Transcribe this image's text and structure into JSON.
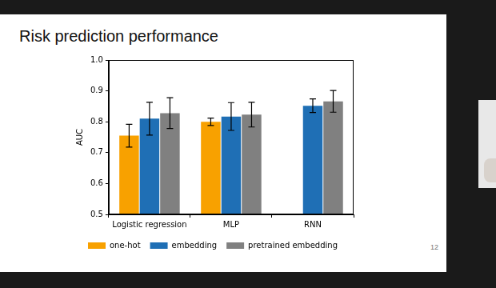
{
  "chart_data": {
    "type": "bar",
    "title": "Risk prediction performance",
    "annotations": [
      "12"
    ],
    "y_label": "AUC",
    "categories": [
      "Logistic regression",
      "MLP",
      "RNN"
    ],
    "series": [
      {
        "name": "one-hot",
        "color": "#f8a100",
        "values": [
          0.755,
          0.8,
          null
        ],
        "errors": [
          0.037,
          0.012,
          null
        ]
      },
      {
        "name": "embedding",
        "color": "#1f6fb5",
        "values": [
          0.81,
          0.817,
          0.852
        ],
        "errors": [
          0.053,
          0.045,
          0.022
        ]
      },
      {
        "name": "pretrained embedding",
        "color": "#808080",
        "values": [
          0.828,
          0.823,
          0.866
        ],
        "errors": [
          0.05,
          0.04,
          0.035
        ]
      }
    ],
    "ylim": [
      0.5,
      1
    ],
    "yticks": [
      0.5,
      0.6,
      0.7,
      0.8,
      0.9,
      {
        "value": 1,
        "label": "1.0"
      }
    ],
    "grid": false,
    "legend": "bottom"
  }
}
